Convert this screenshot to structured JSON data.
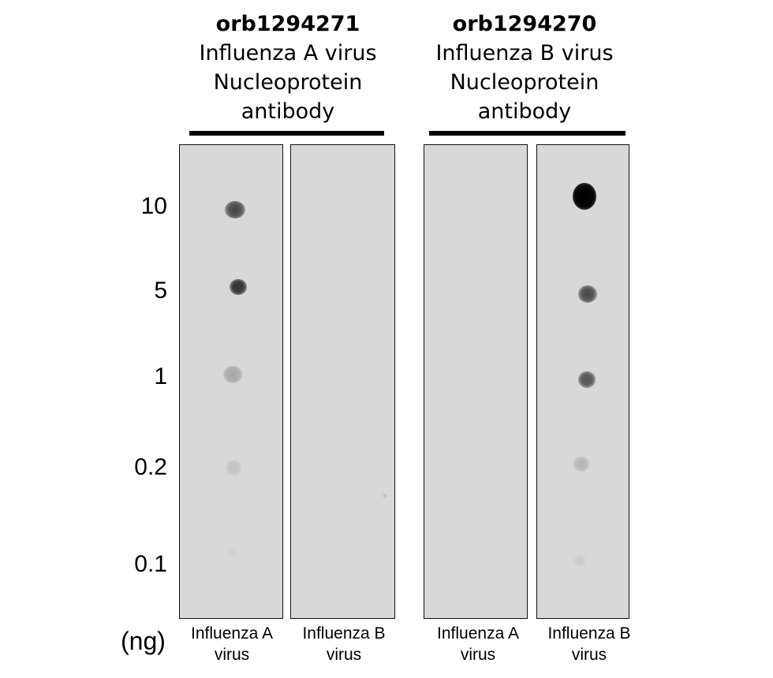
{
  "groups": [
    {
      "code": "orb1294271",
      "lines": [
        "Influenza A virus",
        "Nucleoprotein",
        "antibody"
      ]
    },
    {
      "code": "orb1294270",
      "lines": [
        "Influenza B virus",
        "Nucleoprotein",
        "antibody"
      ]
    }
  ],
  "concentrations": [
    "10",
    "5",
    "1",
    "0.2",
    "0.1"
  ],
  "unit_label": "(ng)",
  "lanes": [
    {
      "label_line1": "Influenza A",
      "label_line2": "virus"
    },
    {
      "label_line1": "Influenza B",
      "label_line2": "virus"
    },
    {
      "label_line1": "Influenza A",
      "label_line2": "virus"
    },
    {
      "label_line1": "Influenza B",
      "label_line2": "virus"
    }
  ],
  "colors": {
    "membrane": "#d8d8d8",
    "spot": "#000000"
  }
}
